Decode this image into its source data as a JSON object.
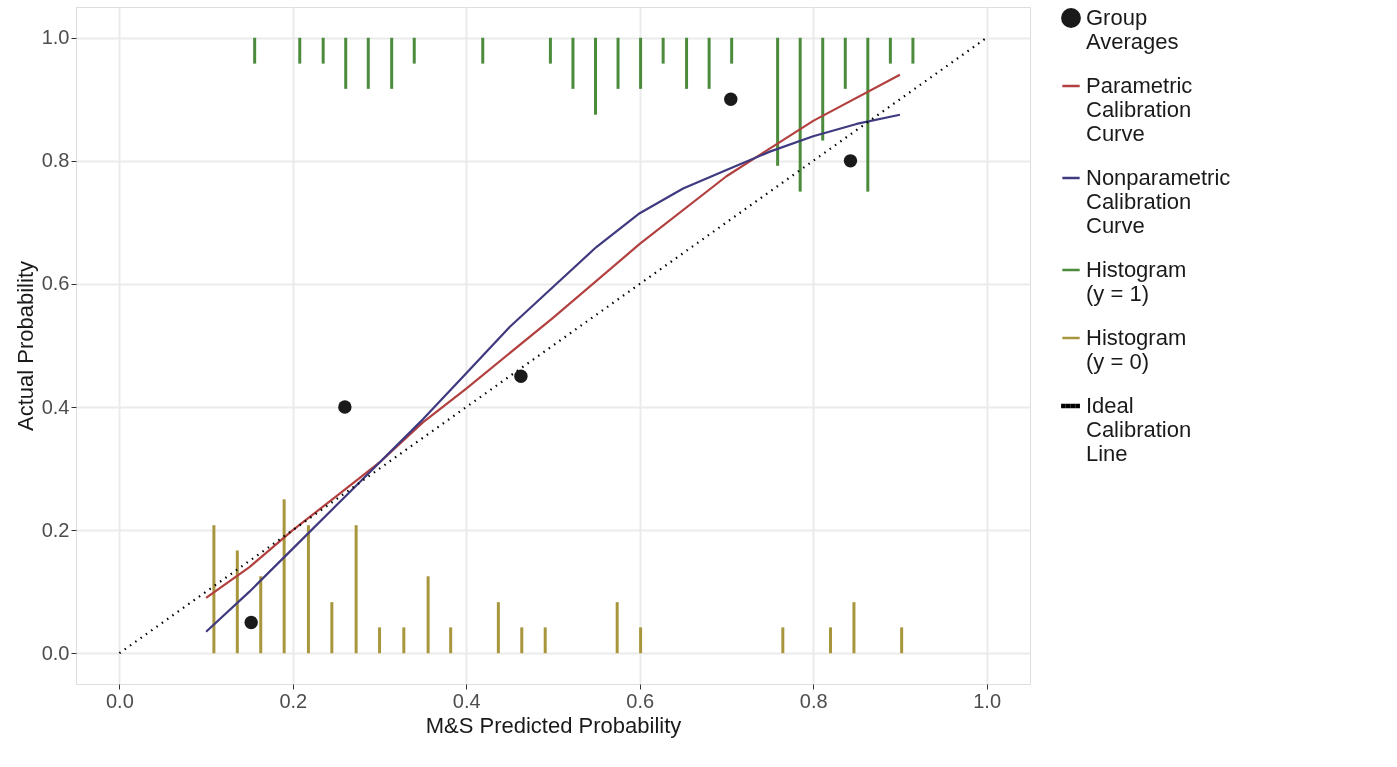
{
  "chart_data": {
    "type": "line",
    "xlabel": "M&S Predicted Probability",
    "ylabel": "Actual Probability",
    "xlim": [
      -0.05,
      1.05
    ],
    "ylim": [
      -0.05,
      1.05
    ],
    "xticks": [
      {
        "value": 0,
        "label": "0.0"
      },
      {
        "value": 0.2,
        "label": "0.2"
      },
      {
        "value": 0.4,
        "label": "0.4"
      },
      {
        "value": 0.6,
        "label": "0.6"
      },
      {
        "value": 0.8,
        "label": "0.8"
      },
      {
        "value": 1,
        "label": "1.0"
      }
    ],
    "yticks": [
      {
        "value": 0,
        "label": "0.0"
      },
      {
        "value": 0.2,
        "label": "0.2"
      },
      {
        "value": 0.4,
        "label": "0.4"
      },
      {
        "value": 0.6,
        "label": "0.6"
      },
      {
        "value": 0.8,
        "label": "0.8"
      },
      {
        "value": 1,
        "label": "1.0"
      }
    ],
    "grid": true,
    "legend": "right",
    "series": [
      {
        "name": "Group Averages",
        "type": "scatter",
        "marker": "circle",
        "color": "#1a1a1a",
        "x": [
          0.152,
          0.26,
          0.463,
          0.705,
          0.843
        ],
        "values": [
          0.05,
          0.4,
          0.45,
          0.9,
          0.8
        ]
      },
      {
        "name": "Parametric Calibration Curve",
        "color": "#b2403f",
        "x": [
          0.1,
          0.15,
          0.2,
          0.25,
          0.3,
          0.35,
          0.4,
          0.5,
          0.6,
          0.7,
          0.8,
          0.9
        ],
        "values": [
          0.09,
          0.14,
          0.2,
          0.255,
          0.31,
          0.375,
          0.43,
          0.545,
          0.665,
          0.775,
          0.865,
          0.94
        ]
      },
      {
        "name": "Nonparametric Calibration Curve",
        "color": "#3f3a7f",
        "x": [
          0.1,
          0.15,
          0.2,
          0.25,
          0.3,
          0.35,
          0.4,
          0.45,
          0.5,
          0.55,
          0.6,
          0.65,
          0.7,
          0.75,
          0.8,
          0.85,
          0.9
        ],
        "values": [
          0.035,
          0.1,
          0.17,
          0.24,
          0.31,
          0.38,
          0.455,
          0.53,
          0.595,
          0.66,
          0.715,
          0.755,
          0.785,
          0.815,
          0.84,
          0.86,
          0.875
        ]
      },
      {
        "name": "Histogram (y = 1)",
        "type": "bar",
        "color": "#4b8b3b",
        "x": [
          0.156,
          0.208,
          0.235,
          0.261,
          0.287,
          0.314,
          0.34,
          0.419,
          0.497,
          0.523,
          0.549,
          0.575,
          0.601,
          0.627,
          0.654,
          0.68,
          0.706,
          0.759,
          0.785,
          0.811,
          0.837,
          0.863,
          0.889,
          0.915
        ],
        "base": [
          1,
          1,
          1,
          1,
          1,
          1,
          1,
          1,
          1,
          1,
          1,
          1,
          1,
          1,
          1,
          1,
          1,
          1,
          1,
          1,
          1,
          1,
          1,
          1
        ],
        "values": [
          -0.042,
          -0.042,
          -0.042,
          -0.083,
          -0.083,
          -0.083,
          -0.042,
          -0.042,
          -0.042,
          -0.083,
          -0.125,
          -0.083,
          -0.083,
          -0.042,
          -0.083,
          -0.083,
          -0.042,
          -0.208,
          -0.25,
          -0.167,
          -0.083,
          -0.25,
          -0.042,
          -0.042
        ]
      },
      {
        "name": "Histogram (y = 0)",
        "type": "bar",
        "color": "#a8963c",
        "x": [
          0.109,
          0.136,
          0.163,
          0.19,
          0.218,
          0.245,
          0.273,
          0.3,
          0.328,
          0.356,
          0.382,
          0.437,
          0.464,
          0.491,
          0.574,
          0.601,
          0.765,
          0.82,
          0.847,
          0.902
        ],
        "values": [
          0.208,
          0.167,
          0.125,
          0.25,
          0.208,
          0.083,
          0.208,
          0.042,
          0.042,
          0.125,
          0.042,
          0.083,
          0.042,
          0.042,
          0.083,
          0.042,
          0.042,
          0.042,
          0.083,
          0.042
        ]
      },
      {
        "name": "Ideal Calibration Line",
        "line_style": "dotted",
        "color": "#000000",
        "x": [
          0,
          1
        ],
        "values": [
          0,
          1
        ]
      }
    ]
  }
}
